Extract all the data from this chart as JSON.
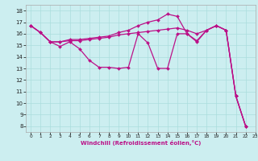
{
  "xlabel": "Windchill (Refroidissement éolien,°C)",
  "bg_color": "#cceef0",
  "grid_color": "#aadddd",
  "line_color": "#bb1188",
  "xlim": [
    -0.5,
    23
  ],
  "ylim": [
    7.5,
    18.5
  ],
  "yticks": [
    8,
    9,
    10,
    11,
    12,
    13,
    14,
    15,
    16,
    17,
    18
  ],
  "xticks": [
    0,
    1,
    2,
    3,
    4,
    5,
    6,
    7,
    8,
    9,
    10,
    11,
    12,
    13,
    14,
    15,
    16,
    17,
    18,
    19,
    20,
    21,
    22,
    23
  ],
  "line1_x": [
    0,
    1,
    2,
    3,
    4,
    5,
    6,
    7,
    8,
    9,
    10,
    11,
    12,
    13,
    14,
    15,
    16,
    17,
    18,
    19,
    20,
    21,
    22
  ],
  "line1_y": [
    16.7,
    16.1,
    15.3,
    14.9,
    15.3,
    14.7,
    13.7,
    13.1,
    13.1,
    13.0,
    13.1,
    16.0,
    15.2,
    13.0,
    13.0,
    16.0,
    16.0,
    15.3,
    16.3,
    16.7,
    16.3,
    10.6,
    8.0
  ],
  "line2_x": [
    0,
    1,
    2,
    3,
    4,
    5,
    6,
    7,
    8,
    9,
    10,
    11,
    12,
    13,
    14,
    15,
    16,
    17,
    18,
    19,
    20,
    21,
    22
  ],
  "line2_y": [
    16.7,
    16.1,
    15.3,
    15.3,
    15.4,
    15.4,
    15.5,
    15.6,
    15.7,
    15.9,
    16.0,
    16.1,
    16.2,
    16.3,
    16.4,
    16.5,
    16.3,
    16.0,
    16.3,
    16.7,
    16.3,
    10.6,
    8.0
  ],
  "line3_x": [
    0,
    1,
    2,
    3,
    4,
    5,
    6,
    7,
    8,
    9,
    10,
    11,
    12,
    13,
    14,
    15,
    16,
    17,
    18,
    19,
    20,
    21,
    22
  ],
  "line3_y": [
    16.7,
    16.1,
    15.3,
    15.3,
    15.5,
    15.5,
    15.6,
    15.7,
    15.8,
    16.1,
    16.3,
    16.7,
    17.0,
    17.2,
    17.7,
    17.5,
    16.0,
    15.4,
    16.3,
    16.7,
    16.3,
    10.6,
    8.0
  ]
}
